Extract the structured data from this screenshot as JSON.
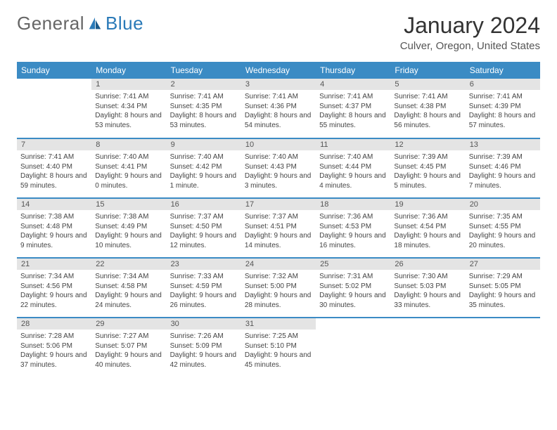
{
  "logo": {
    "text1": "General",
    "text2": "Blue"
  },
  "title": "January 2024",
  "location": "Culver, Oregon, United States",
  "weekdays": [
    "Sunday",
    "Monday",
    "Tuesday",
    "Wednesday",
    "Thursday",
    "Friday",
    "Saturday"
  ],
  "colors": {
    "accent": "#3b8bc4",
    "logo_blue": "#2a7ab8",
    "daynum_bg": "#e4e4e4"
  },
  "days": [
    null,
    {
      "n": "1",
      "sunrise": "7:41 AM",
      "sunset": "4:34 PM",
      "daylight": "8 hours and 53 minutes."
    },
    {
      "n": "2",
      "sunrise": "7:41 AM",
      "sunset": "4:35 PM",
      "daylight": "8 hours and 53 minutes."
    },
    {
      "n": "3",
      "sunrise": "7:41 AM",
      "sunset": "4:36 PM",
      "daylight": "8 hours and 54 minutes."
    },
    {
      "n": "4",
      "sunrise": "7:41 AM",
      "sunset": "4:37 PM",
      "daylight": "8 hours and 55 minutes."
    },
    {
      "n": "5",
      "sunrise": "7:41 AM",
      "sunset": "4:38 PM",
      "daylight": "8 hours and 56 minutes."
    },
    {
      "n": "6",
      "sunrise": "7:41 AM",
      "sunset": "4:39 PM",
      "daylight": "8 hours and 57 minutes."
    },
    {
      "n": "7",
      "sunrise": "7:41 AM",
      "sunset": "4:40 PM",
      "daylight": "8 hours and 59 minutes."
    },
    {
      "n": "8",
      "sunrise": "7:40 AM",
      "sunset": "4:41 PM",
      "daylight": "9 hours and 0 minutes."
    },
    {
      "n": "9",
      "sunrise": "7:40 AM",
      "sunset": "4:42 PM",
      "daylight": "9 hours and 1 minute."
    },
    {
      "n": "10",
      "sunrise": "7:40 AM",
      "sunset": "4:43 PM",
      "daylight": "9 hours and 3 minutes."
    },
    {
      "n": "11",
      "sunrise": "7:40 AM",
      "sunset": "4:44 PM",
      "daylight": "9 hours and 4 minutes."
    },
    {
      "n": "12",
      "sunrise": "7:39 AM",
      "sunset": "4:45 PM",
      "daylight": "9 hours and 5 minutes."
    },
    {
      "n": "13",
      "sunrise": "7:39 AM",
      "sunset": "4:46 PM",
      "daylight": "9 hours and 7 minutes."
    },
    {
      "n": "14",
      "sunrise": "7:38 AM",
      "sunset": "4:48 PM",
      "daylight": "9 hours and 9 minutes."
    },
    {
      "n": "15",
      "sunrise": "7:38 AM",
      "sunset": "4:49 PM",
      "daylight": "9 hours and 10 minutes."
    },
    {
      "n": "16",
      "sunrise": "7:37 AM",
      "sunset": "4:50 PM",
      "daylight": "9 hours and 12 minutes."
    },
    {
      "n": "17",
      "sunrise": "7:37 AM",
      "sunset": "4:51 PM",
      "daylight": "9 hours and 14 minutes."
    },
    {
      "n": "18",
      "sunrise": "7:36 AM",
      "sunset": "4:53 PM",
      "daylight": "9 hours and 16 minutes."
    },
    {
      "n": "19",
      "sunrise": "7:36 AM",
      "sunset": "4:54 PM",
      "daylight": "9 hours and 18 minutes."
    },
    {
      "n": "20",
      "sunrise": "7:35 AM",
      "sunset": "4:55 PM",
      "daylight": "9 hours and 20 minutes."
    },
    {
      "n": "21",
      "sunrise": "7:34 AM",
      "sunset": "4:56 PM",
      "daylight": "9 hours and 22 minutes."
    },
    {
      "n": "22",
      "sunrise": "7:34 AM",
      "sunset": "4:58 PM",
      "daylight": "9 hours and 24 minutes."
    },
    {
      "n": "23",
      "sunrise": "7:33 AM",
      "sunset": "4:59 PM",
      "daylight": "9 hours and 26 minutes."
    },
    {
      "n": "24",
      "sunrise": "7:32 AM",
      "sunset": "5:00 PM",
      "daylight": "9 hours and 28 minutes."
    },
    {
      "n": "25",
      "sunrise": "7:31 AM",
      "sunset": "5:02 PM",
      "daylight": "9 hours and 30 minutes."
    },
    {
      "n": "26",
      "sunrise": "7:30 AM",
      "sunset": "5:03 PM",
      "daylight": "9 hours and 33 minutes."
    },
    {
      "n": "27",
      "sunrise": "7:29 AM",
      "sunset": "5:05 PM",
      "daylight": "9 hours and 35 minutes."
    },
    {
      "n": "28",
      "sunrise": "7:28 AM",
      "sunset": "5:06 PM",
      "daylight": "9 hours and 37 minutes."
    },
    {
      "n": "29",
      "sunrise": "7:27 AM",
      "sunset": "5:07 PM",
      "daylight": "9 hours and 40 minutes."
    },
    {
      "n": "30",
      "sunrise": "7:26 AM",
      "sunset": "5:09 PM",
      "daylight": "9 hours and 42 minutes."
    },
    {
      "n": "31",
      "sunrise": "7:25 AM",
      "sunset": "5:10 PM",
      "daylight": "9 hours and 45 minutes."
    },
    null,
    null,
    null
  ],
  "labels": {
    "sunrise": "Sunrise:",
    "sunset": "Sunset:",
    "daylight": "Daylight:"
  }
}
